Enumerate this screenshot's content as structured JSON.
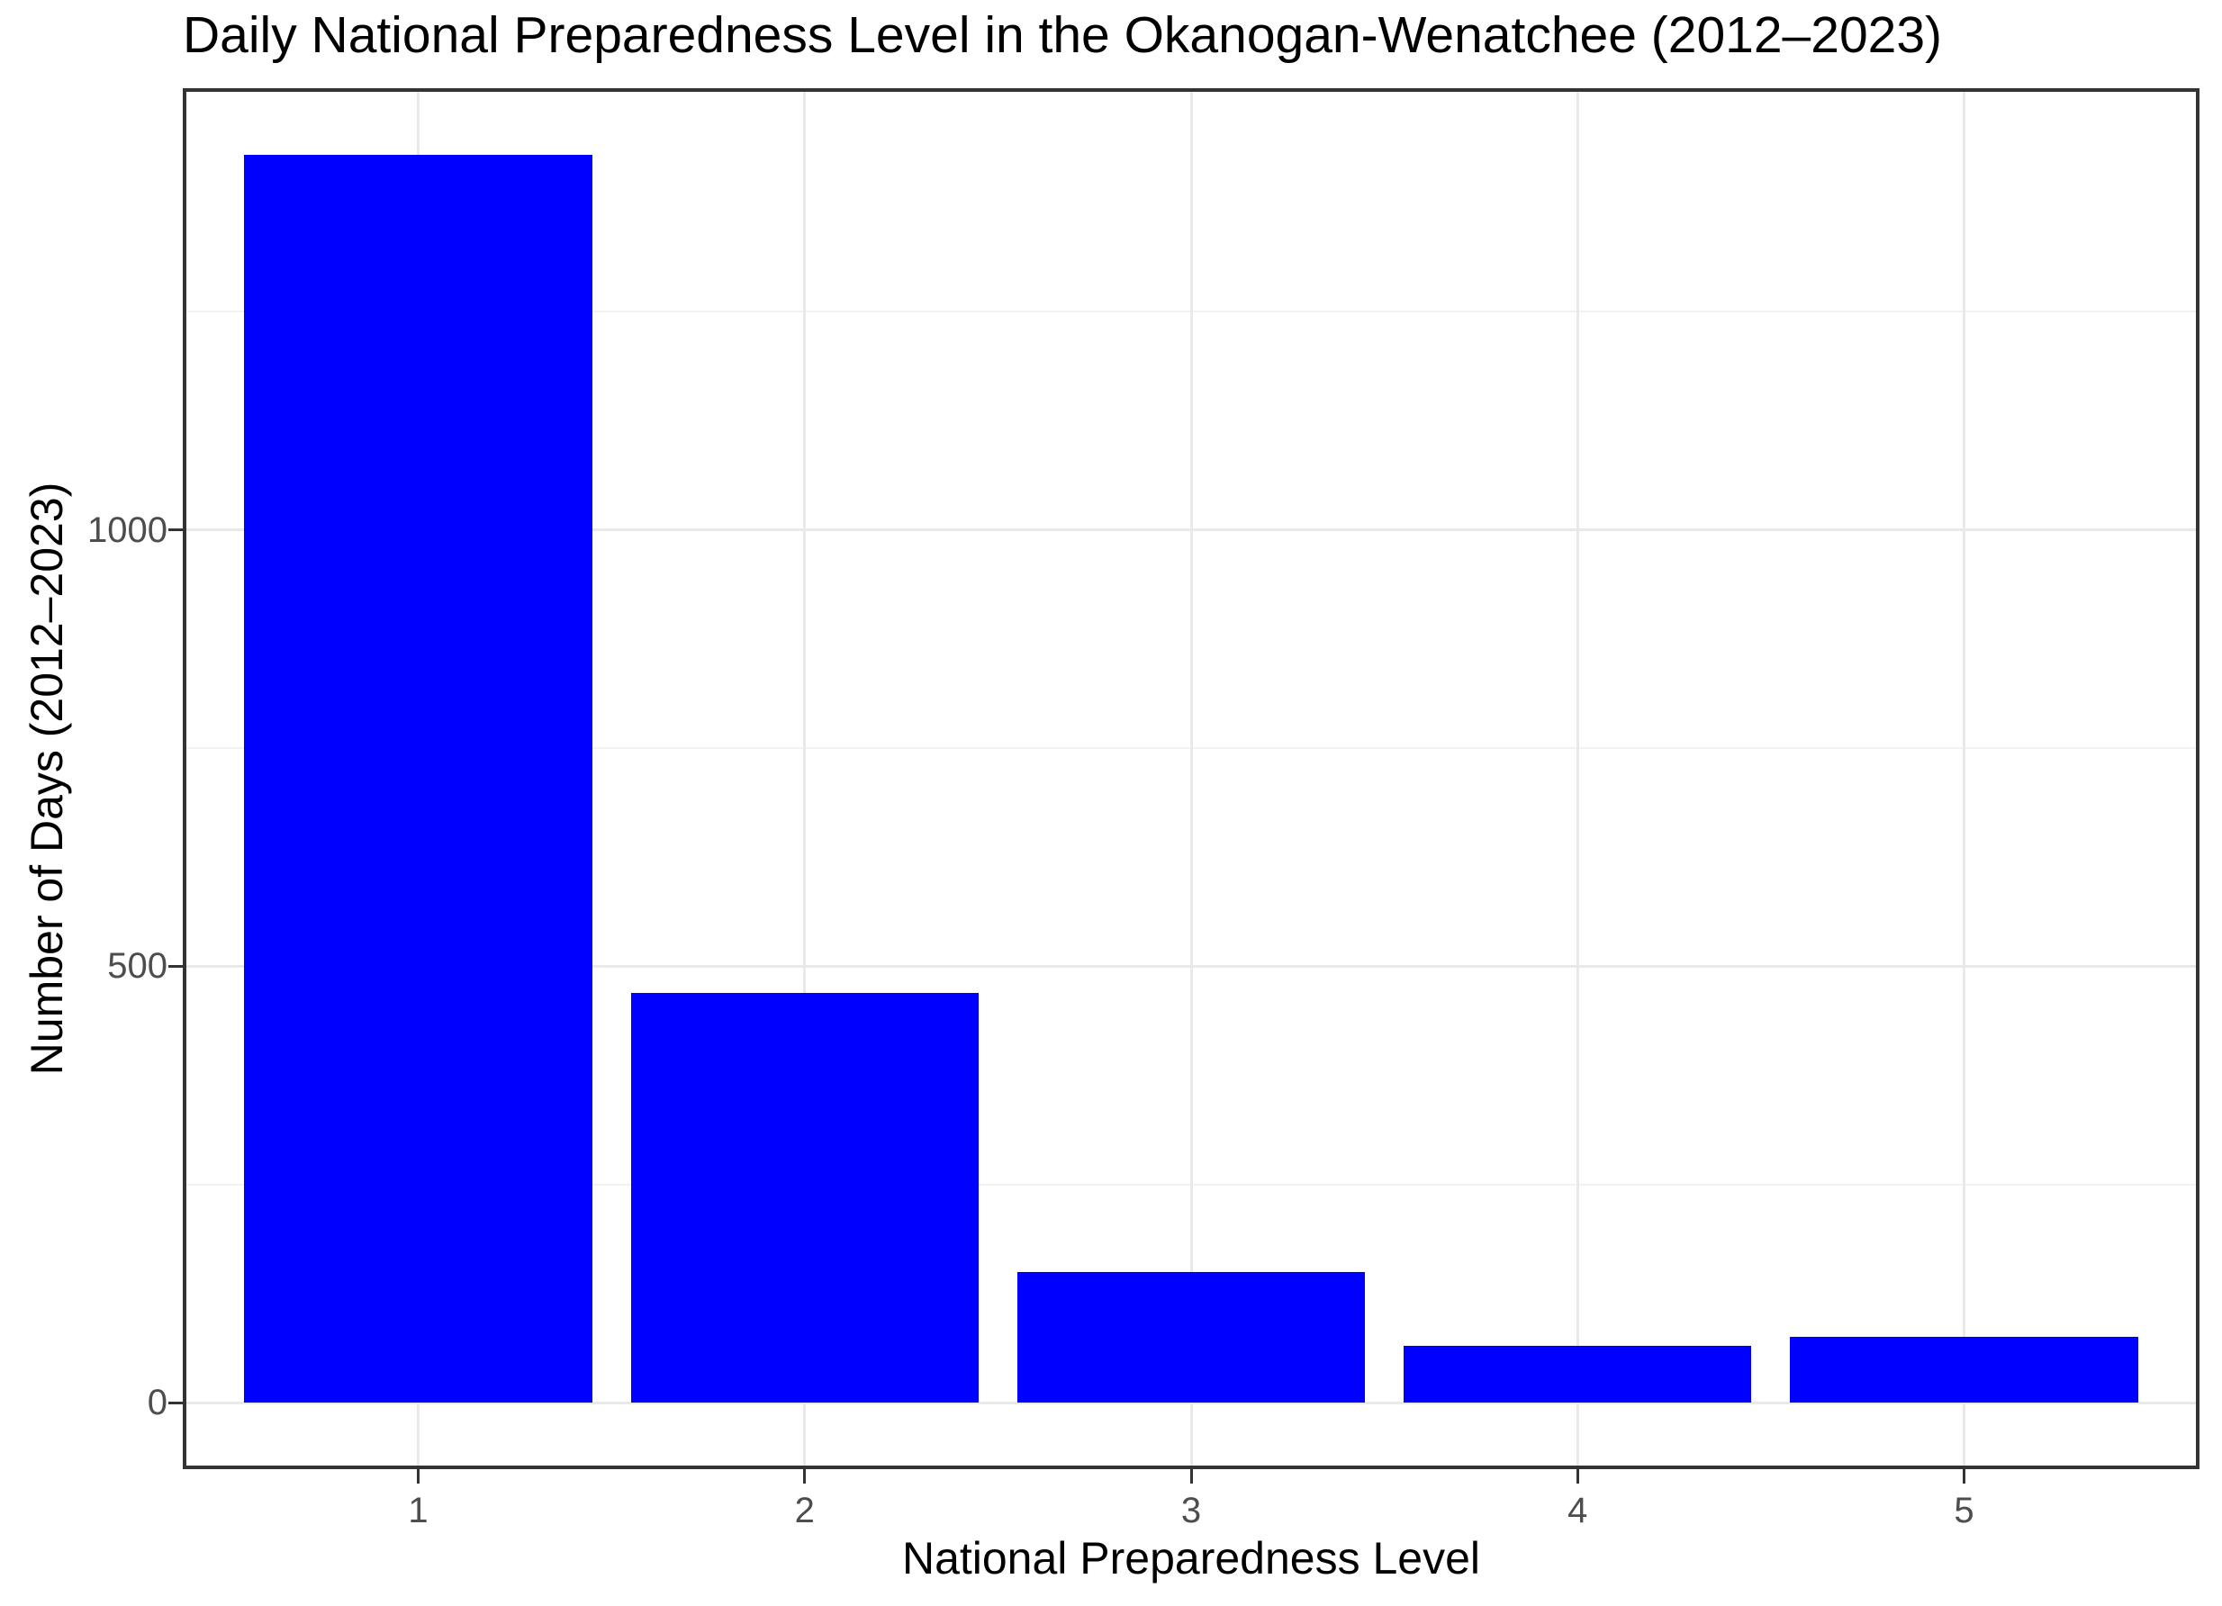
{
  "page": {
    "background_color": "#ffffff"
  },
  "chart_data": {
    "type": "bar",
    "title": "Daily National Preparedness Level in the Okanogan-Wenatchee (2012–2023)",
    "xlabel": "National Preparedness Level",
    "ylabel": "Number of Days (2012–2023)",
    "categories": [
      "1",
      "2",
      "3",
      "4",
      "5"
    ],
    "values": [
      1430,
      470,
      150,
      65,
      75
    ],
    "y_ticks": [
      0,
      500,
      1000
    ],
    "y_minor_ticks": [
      250,
      750,
      1250
    ],
    "ylim": [
      -72,
      1502
    ],
    "xlim_units": [
      0.4,
      5.6
    ],
    "bar_width_fraction": 0.9,
    "grid": "major-and-minor, no vertical minors",
    "legend": "none",
    "colors": {
      "bar_fill": "#0000ff",
      "panel_border": "#333333",
      "major_grid": "#e9e9e9",
      "minor_grid": "#f2f2f2",
      "tick_mark": "#333333",
      "tick_label": "#4d4d4d",
      "title_text": "#000000"
    }
  }
}
